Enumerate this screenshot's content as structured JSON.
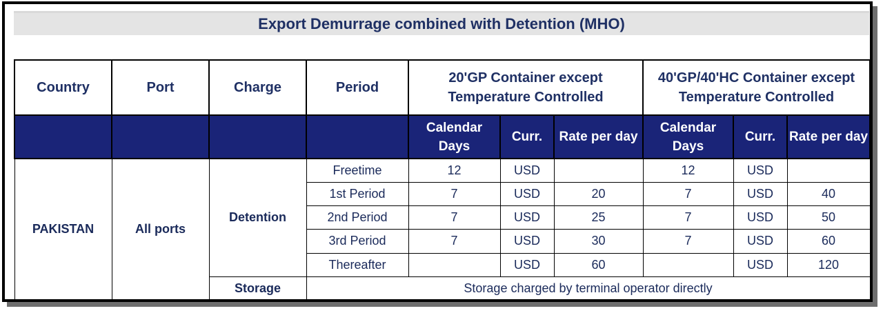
{
  "title": "Export Demurrage combined with Detention (MHO)",
  "headers": {
    "country": "Country",
    "port": "Port",
    "charge": "Charge",
    "period": "Period",
    "group_20": "20'GP Container except Temperature Controlled",
    "group_40": "40'GP/40'HC Container except Temperature Controlled"
  },
  "subheaders": {
    "calendar_days": "Calendar Days",
    "curr": "Curr.",
    "rate_per_day": "Rate per day"
  },
  "body": {
    "country": "PAKISTAN",
    "port": "All ports",
    "charge_detention": "Detention",
    "charge_storage": "Storage",
    "storage_note": "Storage charged by terminal operator directly",
    "rows": [
      {
        "period": "Freetime",
        "d20": "12",
        "c20": "USD",
        "r20": "",
        "d40": "12",
        "c40": "USD",
        "r40": ""
      },
      {
        "period": "1st Period",
        "d20": "7",
        "c20": "USD",
        "r20": "20",
        "d40": "7",
        "c40": "USD",
        "r40": "40"
      },
      {
        "period": "2nd Period",
        "d20": "7",
        "c20": "USD",
        "r20": "25",
        "d40": "7",
        "c40": "USD",
        "r40": "50"
      },
      {
        "period": "3rd Period",
        "d20": "7",
        "c20": "USD",
        "r20": "30",
        "d40": "7",
        "c40": "USD",
        "r40": "60"
      },
      {
        "period": "Thereafter",
        "d20": "",
        "c20": "USD",
        "r20": "60",
        "d40": "",
        "c40": "USD",
        "r40": "120"
      }
    ]
  }
}
